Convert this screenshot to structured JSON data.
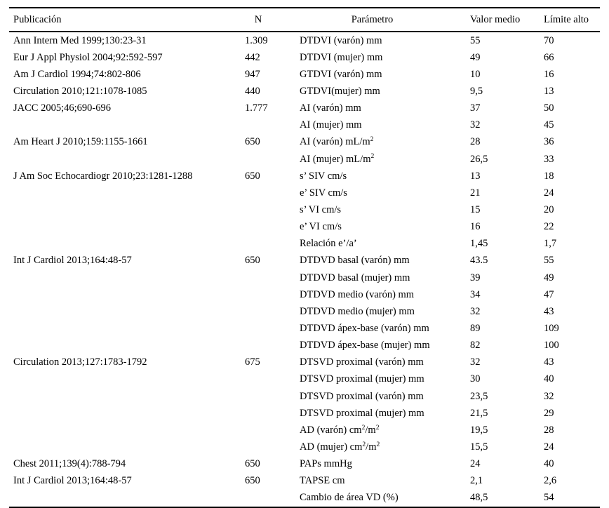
{
  "page": {
    "background_color": "#ffffff",
    "text_color": "#000000",
    "rule_color": "#000000"
  },
  "table": {
    "columns": [
      "Publicación",
      "N",
      "Parámetro",
      "Valor medio",
      "Límite alto"
    ],
    "rows": [
      {
        "publicacion": "Ann Intern Med 1999;130:23-31",
        "n": "1.309",
        "parametro": "DTDVI (varón) mm",
        "valor_medio": "55",
        "limite_alto": "70"
      },
      {
        "publicacion": "Eur J Appl Physiol 2004;92:592-597",
        "n": "442",
        "parametro": "DTDVI (mujer) mm",
        "valor_medio": "49",
        "limite_alto": "66"
      },
      {
        "publicacion": "Am J Cardiol 1994;74:802-806",
        "n": "947",
        "parametro": "GTDVI (varón) mm",
        "valor_medio": "10",
        "limite_alto": "16"
      },
      {
        "publicacion": "Circulation 2010;121:1078-1085",
        "n": "440",
        "parametro": "GTDVI(mujer) mm",
        "valor_medio": "9,5",
        "limite_alto": "13"
      },
      {
        "publicacion": "JACC 2005;46;690-696",
        "n": "1.777",
        "parametro": "AI (varón) mm",
        "valor_medio": "37",
        "limite_alto": "50"
      },
      {
        "publicacion": "",
        "n": "",
        "parametro": "AI (mujer) mm",
        "valor_medio": "32",
        "limite_alto": "45"
      },
      {
        "publicacion": "Am Heart J 2010;159:1155-1661",
        "n": "650",
        "parametro": "AI (varón) mL/m^{2}",
        "valor_medio": "28",
        "limite_alto": "36"
      },
      {
        "publicacion": "",
        "n": "",
        "parametro": "AI (mujer) mL/m^{2}",
        "valor_medio": "26,5",
        "limite_alto": "33"
      },
      {
        "publicacion": "J Am Soc Echocardiogr 2010;23:1281-1288",
        "n": "650",
        "parametro": "s’ SIV cm/s",
        "valor_medio": "13",
        "limite_alto": "18"
      },
      {
        "publicacion": "",
        "n": "",
        "parametro": "e’ SIV cm/s",
        "valor_medio": "21",
        "limite_alto": "24"
      },
      {
        "publicacion": "",
        "n": "",
        "parametro": "s’ VI cm/s",
        "valor_medio": "15",
        "limite_alto": "20"
      },
      {
        "publicacion": "",
        "n": "",
        "parametro": "e’ VI cm/s",
        "valor_medio": "16",
        "limite_alto": "22"
      },
      {
        "publicacion": "",
        "n": "",
        "parametro": "Relación e’/a’",
        "valor_medio": "1,45",
        "limite_alto": "1,7"
      },
      {
        "publicacion": "Int J Cardiol 2013;164:48-57",
        "n": "650",
        "parametro": "DTDVD basal (varón) mm",
        "valor_medio": "43.5",
        "limite_alto": "55"
      },
      {
        "publicacion": "",
        "n": "",
        "parametro": "DTDVD basal (mujer) mm",
        "valor_medio": "39",
        "limite_alto": "49"
      },
      {
        "publicacion": "",
        "n": "",
        "parametro": "DTDVD medio (varón) mm",
        "valor_medio": "34",
        "limite_alto": "47"
      },
      {
        "publicacion": "",
        "n": "",
        "parametro": "DTDVD medio (mujer) mm",
        "valor_medio": "32",
        "limite_alto": "43"
      },
      {
        "publicacion": "",
        "n": "",
        "parametro": "DTDVD ápex-base (varón) mm",
        "valor_medio": "89",
        "limite_alto": "109"
      },
      {
        "publicacion": "",
        "n": "",
        "parametro": "DTDVD ápex-base (mujer) mm",
        "valor_medio": "82",
        "limite_alto": "100"
      },
      {
        "publicacion": "Circulation 2013;127:1783-1792",
        "n": "675",
        "parametro": "DTSVD proximal (varón) mm",
        "valor_medio": "32",
        "limite_alto": "43"
      },
      {
        "publicacion": "",
        "n": "",
        "parametro": "DTSVD proximal (mujer) mm",
        "valor_medio": "30",
        "limite_alto": "40"
      },
      {
        "publicacion": "",
        "n": "",
        "parametro": "DTSVD proximal (varón) mm",
        "valor_medio": "23,5",
        "limite_alto": "32"
      },
      {
        "publicacion": "",
        "n": "",
        "parametro": "DTSVD proximal (mujer) mm",
        "valor_medio": "21,5",
        "limite_alto": "29"
      },
      {
        "publicacion": "",
        "n": "",
        "parametro": "AD (varón) cm^{2}/m^{2}",
        "valor_medio": "19,5",
        "limite_alto": "28"
      },
      {
        "publicacion": "",
        "n": "",
        "parametro": "AD (mujer) cm^{2}/m^{2}",
        "valor_medio": "15,5",
        "limite_alto": "24"
      },
      {
        "publicacion": "Chest 2011;139(4):788-794",
        "n": "650",
        "parametro": "PAPs mmHg",
        "valor_medio": "24",
        "limite_alto": "40"
      },
      {
        "publicacion": "Int J Cardiol 2013;164:48-57",
        "n": "650",
        "parametro": "TAPSE cm",
        "valor_medio": "2,1",
        "limite_alto": "2,6"
      },
      {
        "publicacion": "",
        "n": "",
        "parametro": "Cambio de área VD (%)",
        "valor_medio": "48,5",
        "limite_alto": "54"
      }
    ]
  }
}
